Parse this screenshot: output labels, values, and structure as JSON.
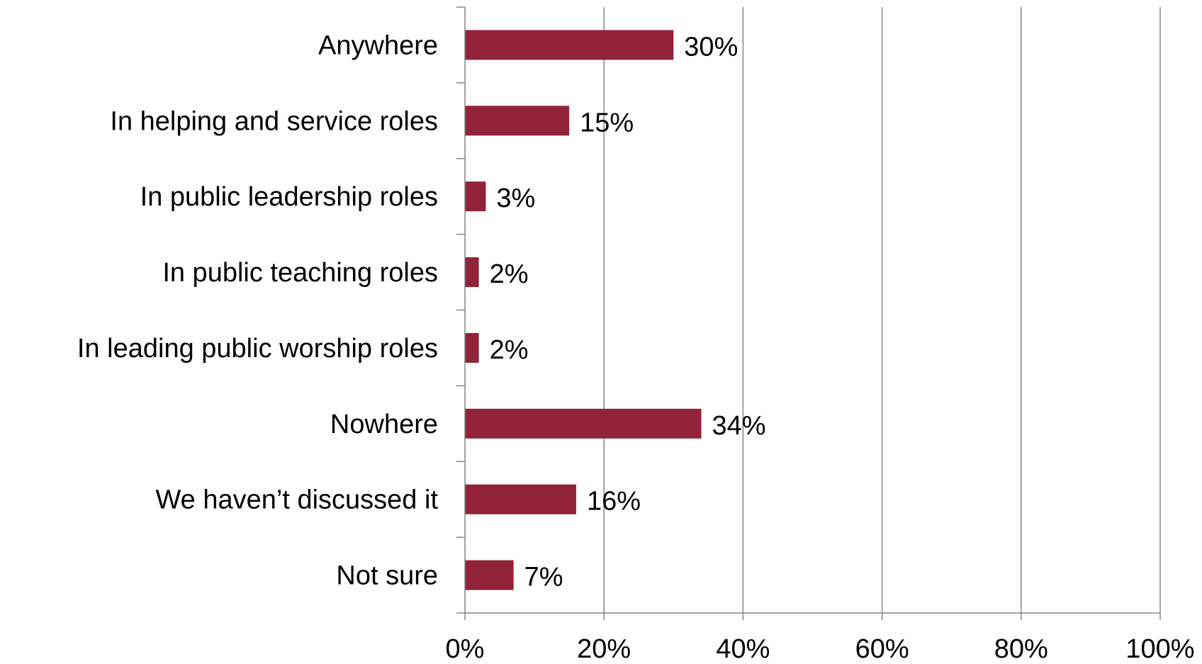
{
  "chart_data": {
    "type": "bar",
    "orientation": "horizontal",
    "categories": [
      "Anywhere",
      "In helping and service roles",
      "In public leadership roles",
      "In public teaching roles",
      "In leading public worship roles",
      "Nowhere",
      "We haven’t discussed it",
      "Not sure"
    ],
    "values": [
      30,
      15,
      3,
      2,
      2,
      34,
      16,
      7
    ],
    "data_labels": [
      "30%",
      "15%",
      "3%",
      "2%",
      "2%",
      "34%",
      "16%",
      "7%"
    ],
    "xlim": [
      0,
      100
    ],
    "x_ticks": [
      0,
      20,
      40,
      60,
      80,
      100
    ],
    "x_tick_labels": [
      "0%",
      "20%",
      "40%",
      "60%",
      "80%",
      "100%"
    ],
    "title": "",
    "xlabel": "",
    "ylabel": "",
    "grid": "vertical",
    "legend": "none",
    "colors": {
      "bar": "#912339",
      "gridline": "#868686",
      "axis": "#868686",
      "text": "#000000"
    }
  }
}
